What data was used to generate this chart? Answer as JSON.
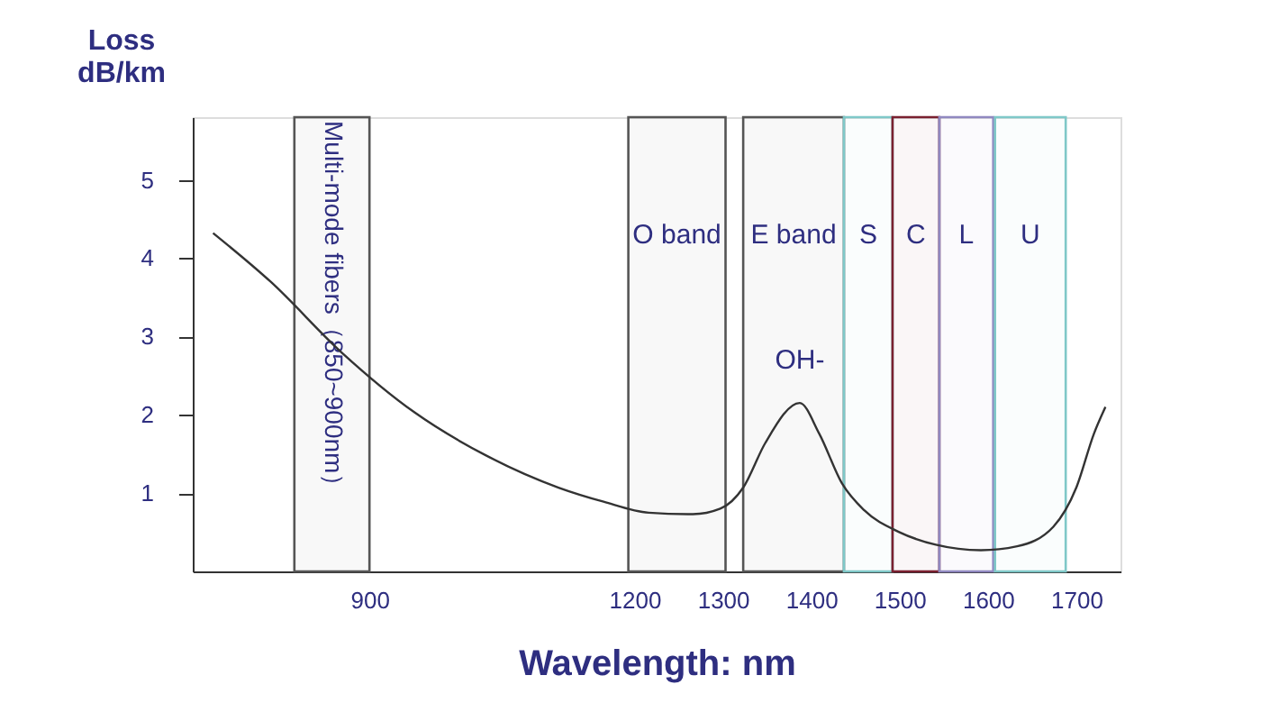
{
  "chart_data": {
    "type": "line",
    "xlabel": "Wavelength: nm",
    "ylabel": "Loss\ndB/km",
    "x": [
      723,
      788,
      869,
      951,
      1032,
      1114,
      1165,
      1216,
      1266,
      1297,
      1323,
      1348,
      1387,
      1409,
      1435,
      1460,
      1500,
      1541,
      1592,
      1633,
      1674,
      1700,
      1720,
      1733
    ],
    "series": [
      {
        "color": "#333333",
        "values": [
          4.32,
          3.7,
          2.79,
          2.03,
          1.48,
          1.07,
          0.89,
          0.75,
          0.73,
          0.8,
          1.07,
          1.64,
          2.15,
          1.76,
          1.12,
          0.78,
          0.5,
          0.34,
          0.27,
          0.32,
          0.57,
          1.07,
          1.76,
          2.1
        ]
      }
    ],
    "xlim": [
      700,
      1750
    ],
    "ylim": [
      0,
      5.8
    ],
    "xticks": [
      900,
      1200,
      1300,
      1400,
      1500,
      1600,
      1700
    ],
    "yticks": [
      1,
      2,
      3,
      4,
      5
    ],
    "bands": [
      {
        "axis": "x",
        "from": 815,
        "to": 900,
        "label": "Multi-mode fibers（850~900nm）",
        "color": "#555555"
      },
      {
        "axis": "x",
        "from": 1193,
        "to": 1303,
        "label": "O band",
        "color": "#555555"
      },
      {
        "axis": "x",
        "from": 1323,
        "to": 1437,
        "label": "E band",
        "color": "#555555"
      },
      {
        "axis": "x",
        "from": 1437,
        "to": 1492,
        "label": "S",
        "color": "#7fc8c8"
      },
      {
        "axis": "x",
        "from": 1492,
        "to": 1545,
        "label": "C",
        "color": "#7a2030"
      },
      {
        "axis": "x",
        "from": 1545,
        "to": 1606,
        "label": "L",
        "color": "#9088c0"
      },
      {
        "axis": "x",
        "from": 1608,
        "to": 1688,
        "label": "U",
        "color": "#7fc8c8"
      }
    ],
    "annotations": [
      {
        "text": "OH-",
        "x": 1387,
        "y": 2.15
      }
    ],
    "grid": false,
    "marker": "none",
    "line_style": "solid"
  }
}
